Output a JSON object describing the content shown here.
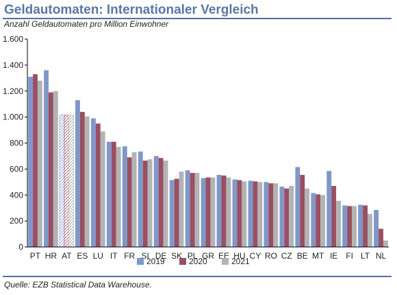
{
  "header": {
    "title": "Geldautomaten: Internationaler Vergleich",
    "subtitle": "Anzahl Geldautomaten pro Million Einwohner"
  },
  "footer": {
    "source": "Quelle: EZB Statistical Data Warehouse."
  },
  "chart_data": {
    "type": "bar",
    "title": "Geldautomaten: Internationaler Vergleich",
    "subtitle": "Anzahl Geldautomaten pro Million Einwohner",
    "xlabel": "",
    "ylabel": "",
    "ylim": [
      0,
      1600
    ],
    "yticks": [
      0,
      200,
      400,
      600,
      800,
      1000,
      1200,
      1400,
      1600
    ],
    "ytick_labels": [
      "0",
      "200",
      "400",
      "600",
      "800",
      "1.000",
      "1.200",
      "1.400",
      "1.600"
    ],
    "grid": false,
    "legend_position": "bottom",
    "categories": [
      "PT",
      "HR",
      "AT",
      "ES",
      "LU",
      "IT",
      "FR",
      "SI",
      "DE",
      "SK",
      "PL",
      "GR",
      "EE",
      "HU",
      "CY",
      "RO",
      "CZ",
      "BE",
      "MT",
      "IE",
      "FI",
      "LT",
      "NL"
    ],
    "highlight_category": "AT",
    "series": [
      {
        "name": "2019",
        "color": "#7f98c8",
        "values": [
          1310,
          1360,
          1015,
          1130,
          990,
          810,
          775,
          735,
          700,
          515,
          590,
          530,
          555,
          520,
          510,
          500,
          465,
          615,
          415,
          585,
          320,
          325,
          285
        ]
      },
      {
        "name": "2020",
        "color": "#9b4f62",
        "values": [
          1330,
          1190,
          1015,
          1040,
          950,
          810,
          690,
          665,
          685,
          525,
          570,
          535,
          550,
          515,
          505,
          490,
          450,
          555,
          405,
          470,
          315,
          320,
          140
        ]
      },
      {
        "name": "2021",
        "color": "#b3b3b3",
        "values": [
          1280,
          1200,
          1015,
          1005,
          890,
          770,
          730,
          675,
          665,
          580,
          570,
          535,
          535,
          505,
          500,
          490,
          470,
          450,
          400,
          355,
          315,
          255,
          50
        ]
      }
    ]
  }
}
